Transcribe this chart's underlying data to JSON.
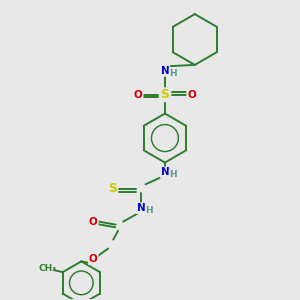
{
  "background_color": "#e8e8e8",
  "bond_color": "#2d7d2d",
  "atom_colors": {
    "N": "#0000cc",
    "O": "#cc0000",
    "S_sulfonyl": "#cccc00",
    "S_thio": "#cccc00",
    "C": "#2d7d2d",
    "H": "#5a9a9a"
  },
  "figsize": [
    3.0,
    3.0
  ],
  "dpi": 100,
  "xlim": [
    0,
    10
  ],
  "ylim": [
    0,
    10
  ]
}
